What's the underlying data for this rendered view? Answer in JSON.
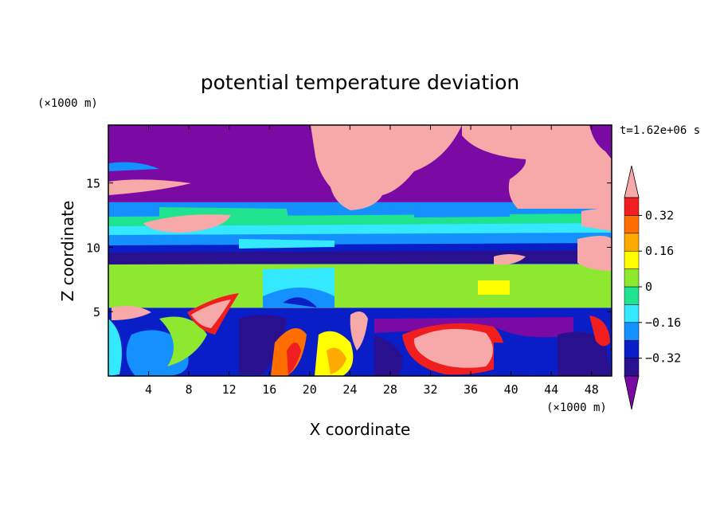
{
  "chart_data": {
    "type": "heatmap",
    "title": "potential temperature deviation",
    "xlabel": "X coordinate",
    "ylabel": "Z coordinate",
    "x_unit": "(×1000 m)",
    "y_unit": "(×1000 m)",
    "time_label": "t=1.62e+06 s",
    "xlim": [
      0,
      50
    ],
    "ylim": [
      0,
      19.5
    ],
    "x_ticks": [
      4,
      8,
      12,
      16,
      20,
      24,
      28,
      32,
      36,
      40,
      44,
      48
    ],
    "y_ticks": [
      5,
      10,
      15
    ],
    "grid": false,
    "colorbar": {
      "placement": "right",
      "extend": "both",
      "levels": [
        -0.4,
        -0.32,
        -0.24,
        -0.16,
        -0.08,
        0,
        0.08,
        0.16,
        0.24,
        0.32,
        0.4
      ],
      "tick_labels": [
        "0.32",
        "0.16",
        "0",
        "−0.16",
        "−0.32"
      ],
      "tick_values": [
        0.32,
        0.16,
        0,
        -0.16,
        -0.32
      ],
      "colors": [
        "#7a0aa3",
        "#28108f",
        "#0a1ec8",
        "#1590ff",
        "#33e8ff",
        "#1fe38f",
        "#8ee830",
        "#ffff00",
        "#ffaa00",
        "#ff6e00",
        "#f01e1e",
        "#f7a9a9"
      ]
    },
    "layers": [
      {
        "zmin": 13.5,
        "zmax": 19.5,
        "value": -0.45
      },
      {
        "zmin": 12.2,
        "zmax": 13.5,
        "value": -0.2
      },
      {
        "zmin": 10.5,
        "zmax": 12.2,
        "value": -0.1
      },
      {
        "zmin": 8.7,
        "zmax": 10.5,
        "value": -0.3
      },
      {
        "zmin": 5.3,
        "zmax": 8.7,
        "value": 0.03
      },
      {
        "zmin": 0,
        "zmax": 5.3,
        "value": -0.25
      }
    ]
  }
}
